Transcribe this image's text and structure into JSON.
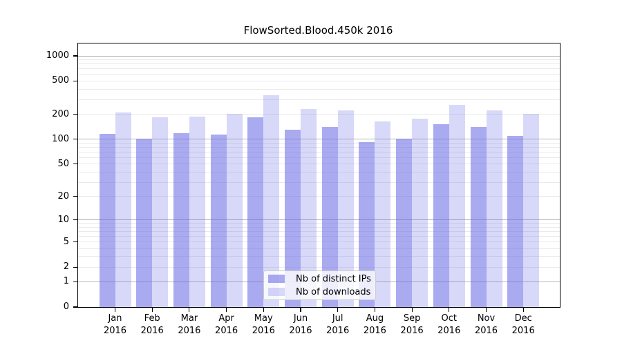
{
  "window": {
    "background": "#ffffff"
  },
  "chart_data": {
    "type": "bar",
    "title": "FlowSorted.Blood.450k 2016",
    "categories": [
      "Jan 2016",
      "Feb 2016",
      "Mar 2016",
      "Apr 2016",
      "May 2016",
      "Jun 2016",
      "Jul 2016",
      "Aug 2016",
      "Sep 2016",
      "Oct 2016",
      "Nov 2016",
      "Dec 2016"
    ],
    "series": [
      {
        "name": "Nb of distinct IPs",
        "color": "rgba(100,100,230,0.55)",
        "solid_color": "#aaaaf0",
        "values": [
          117,
          101,
          119,
          115,
          184,
          130,
          140,
          92,
          102,
          151,
          142,
          110
        ]
      },
      {
        "name": "Nb of downloads",
        "color": "rgba(100,100,230,0.25)",
        "solid_color": "#d8d8f8",
        "values": [
          212,
          184,
          186,
          202,
          338,
          230,
          221,
          164,
          178,
          259,
          222,
          201
        ]
      }
    ],
    "xlabel": "",
    "ylabel": "",
    "yscale": "log10(1+x)",
    "ylim": [
      0,
      1400
    ],
    "ytick_labels": [
      0,
      1,
      2,
      5,
      10,
      20,
      50,
      100,
      200,
      500,
      1000
    ],
    "major_gridlines": [
      1,
      10,
      100,
      1000
    ],
    "minor_gridlines": "log decades: 2-9, 20-90, 200-900",
    "grid": true,
    "legend_position": "inside lower-center"
  },
  "colors": {
    "axis": "#000000",
    "major_gridline": "#b5b5b5",
    "minor_gridline": "#eaeaea",
    "tick_text": "#000000",
    "legend_border": "#cccccc",
    "legend_background": "rgba(255,255,255,0.8)"
  }
}
